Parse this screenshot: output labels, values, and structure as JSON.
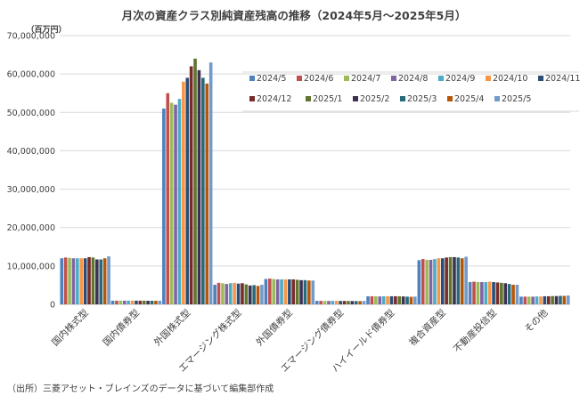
{
  "chart_data": {
    "type": "bar",
    "title": "月次の資産クラス別純資産残高の推移（2024年5月～2025年5月）",
    "unit_label": "（百万円）",
    "xlabel": "",
    "ylabel": "",
    "ylim": [
      0,
      70000000
    ],
    "yticks": [
      0,
      10000000,
      20000000,
      30000000,
      40000000,
      50000000,
      60000000,
      70000000
    ],
    "ytick_labels": [
      "0",
      "10,000,000",
      "20,000,000",
      "30,000,000",
      "40,000,000",
      "50,000,000",
      "60,000,000",
      "70,000,000"
    ],
    "grid": true,
    "legend_position": "top-right",
    "categories": [
      "国内株式型",
      "国内債券型",
      "外国株式型",
      "エマージング株式型",
      "外国債券型",
      "エマージング債券型",
      "ハイイールド債券型",
      "複合資産型",
      "不動産投信型",
      "その他"
    ],
    "series": [
      {
        "name": "2024/5",
        "color": "#4f81bd",
        "values": [
          12000000,
          950000,
          51000000,
          5100000,
          6600000,
          900000,
          2100000,
          11500000,
          5800000,
          2000000
        ]
      },
      {
        "name": "2024/6",
        "color": "#c0504d",
        "values": [
          12200000,
          950000,
          55000000,
          5600000,
          6700000,
          900000,
          2100000,
          11800000,
          5900000,
          2000000
        ]
      },
      {
        "name": "2024/7",
        "color": "#9bbb59",
        "values": [
          12100000,
          950000,
          52500000,
          5500000,
          6600000,
          880000,
          2100000,
          11600000,
          5800000,
          2000000
        ]
      },
      {
        "name": "2024/8",
        "color": "#8064a2",
        "values": [
          12000000,
          950000,
          52000000,
          5300000,
          6500000,
          880000,
          2050000,
          11600000,
          5800000,
          2000000
        ]
      },
      {
        "name": "2024/9",
        "color": "#4bacc6",
        "values": [
          12000000,
          950000,
          53500000,
          5500000,
          6500000,
          900000,
          2100000,
          11800000,
          5800000,
          2050000
        ]
      },
      {
        "name": "2024/10",
        "color": "#f79646",
        "values": [
          12000000,
          950000,
          58000000,
          5600000,
          6500000,
          900000,
          2100000,
          12000000,
          5900000,
          2050000
        ]
      },
      {
        "name": "2024/11",
        "color": "#2c4d75",
        "values": [
          12000000,
          950000,
          59000000,
          5400000,
          6500000,
          880000,
          2100000,
          12000000,
          5800000,
          2100000
        ]
      },
      {
        "name": "2024/12",
        "color": "#772c2a",
        "values": [
          12300000,
          950000,
          62000000,
          5500000,
          6500000,
          880000,
          2100000,
          12200000,
          5700000,
          2100000
        ]
      },
      {
        "name": "2025/1",
        "color": "#5f7530",
        "values": [
          12200000,
          950000,
          64000000,
          5200000,
          6400000,
          870000,
          2100000,
          12300000,
          5600000,
          2150000
        ]
      },
      {
        "name": "2025/2",
        "color": "#3f3151",
        "values": [
          11700000,
          930000,
          61000000,
          4900000,
          6300000,
          860000,
          2050000,
          12300000,
          5500000,
          2150000
        ]
      },
      {
        "name": "2025/3",
        "color": "#276a7c",
        "values": [
          11700000,
          930000,
          59000000,
          5000000,
          6300000,
          850000,
          2000000,
          12200000,
          5300000,
          2200000
        ]
      },
      {
        "name": "2025/4",
        "color": "#b65708",
        "values": [
          12000000,
          930000,
          57500000,
          4800000,
          6200000,
          840000,
          1950000,
          12000000,
          5100000,
          2200000
        ]
      },
      {
        "name": "2025/5",
        "color": "#729aca",
        "values": [
          12500000,
          950000,
          63000000,
          5100000,
          6200000,
          880000,
          2000000,
          12400000,
          5100000,
          2300000
        ]
      }
    ]
  },
  "footnote": "（出所）三菱アセット・ブレインズのデータに基づいて編集部作成"
}
